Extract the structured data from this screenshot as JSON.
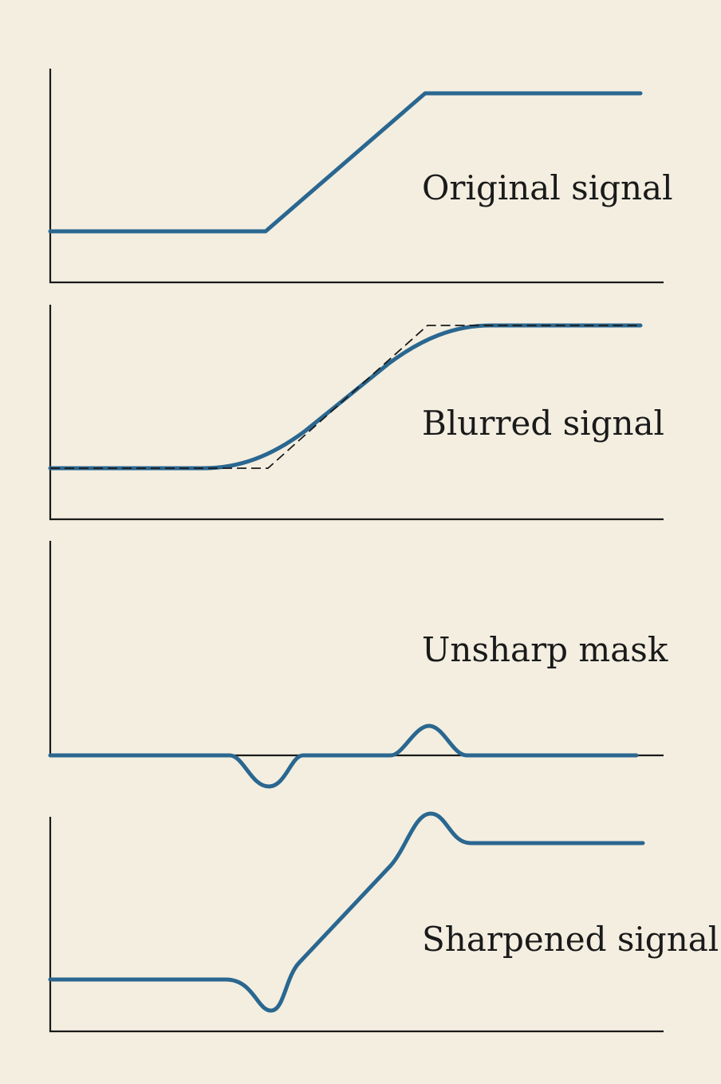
{
  "background_color": "#f3eee0",
  "signal_color": "#2a6790",
  "axis_color": "#1a1a1a",
  "panels": [
    {
      "id": "original",
      "label": "Original signal"
    },
    {
      "id": "blurred",
      "label": "Blurred signal",
      "has_dashed_overlay": true
    },
    {
      "id": "unsharp",
      "label": "Unsharp mask"
    },
    {
      "id": "sharpened",
      "label": "Sharpened signal"
    }
  ]
}
